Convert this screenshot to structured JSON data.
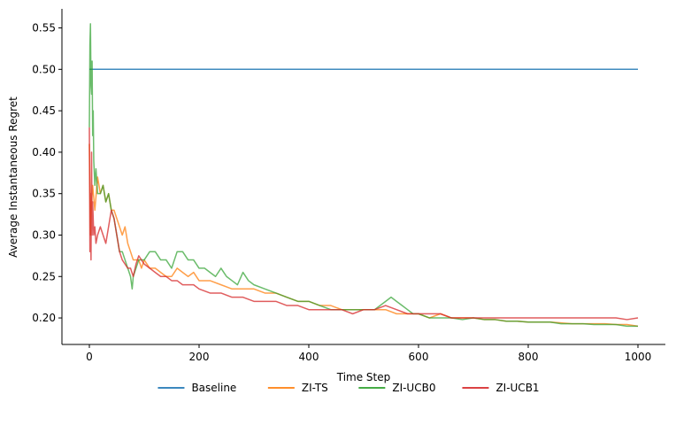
{
  "chart_data": {
    "type": "line",
    "xlabel": "Time Step",
    "ylabel": "Average Instantaneous Regret",
    "xlim": [
      -50,
      1050
    ],
    "ylim": [
      0.168,
      0.573
    ],
    "xticks": [
      0,
      200,
      400,
      600,
      800,
      1000
    ],
    "yticks": [
      0.2,
      0.25,
      0.3,
      0.35,
      0.4,
      0.45,
      0.5,
      0.55
    ],
    "ytick_format_decimals": 2,
    "legend_position": "bottom-center",
    "grid": false,
    "series": [
      {
        "name": "Baseline",
        "color": "#1f77b4",
        "opacity": 0.85,
        "points": [
          [
            0,
            0.5
          ],
          [
            1000,
            0.5
          ]
        ]
      },
      {
        "name": "ZI-TS",
        "color": "#ff7f0e",
        "opacity": 0.75,
        "points": [
          [
            0,
            0.41
          ],
          [
            2,
            0.3
          ],
          [
            4,
            0.34
          ],
          [
            6,
            0.36
          ],
          [
            10,
            0.33
          ],
          [
            15,
            0.37
          ],
          [
            20,
            0.35
          ],
          [
            25,
            0.36
          ],
          [
            30,
            0.34
          ],
          [
            35,
            0.35
          ],
          [
            40,
            0.33
          ],
          [
            45,
            0.33
          ],
          [
            50,
            0.32
          ],
          [
            55,
            0.31
          ],
          [
            60,
            0.3
          ],
          [
            65,
            0.31
          ],
          [
            70,
            0.29
          ],
          [
            75,
            0.28
          ],
          [
            80,
            0.27
          ],
          [
            85,
            0.27
          ],
          [
            90,
            0.27
          ],
          [
            95,
            0.26
          ],
          [
            100,
            0.27
          ],
          [
            110,
            0.26
          ],
          [
            120,
            0.26
          ],
          [
            130,
            0.255
          ],
          [
            140,
            0.25
          ],
          [
            150,
            0.25
          ],
          [
            160,
            0.26
          ],
          [
            170,
            0.255
          ],
          [
            180,
            0.25
          ],
          [
            190,
            0.255
          ],
          [
            200,
            0.245
          ],
          [
            220,
            0.245
          ],
          [
            240,
            0.24
          ],
          [
            260,
            0.235
          ],
          [
            280,
            0.235
          ],
          [
            300,
            0.235
          ],
          [
            320,
            0.23
          ],
          [
            340,
            0.23
          ],
          [
            360,
            0.225
          ],
          [
            380,
            0.22
          ],
          [
            400,
            0.22
          ],
          [
            420,
            0.215
          ],
          [
            440,
            0.215
          ],
          [
            460,
            0.21
          ],
          [
            480,
            0.21
          ],
          [
            500,
            0.21
          ],
          [
            520,
            0.21
          ],
          [
            540,
            0.21
          ],
          [
            560,
            0.205
          ],
          [
            580,
            0.205
          ],
          [
            600,
            0.205
          ],
          [
            620,
            0.2
          ],
          [
            640,
            0.205
          ],
          [
            660,
            0.2
          ],
          [
            680,
            0.2
          ],
          [
            700,
            0.2
          ],
          [
            720,
            0.198
          ],
          [
            740,
            0.198
          ],
          [
            760,
            0.196
          ],
          [
            780,
            0.196
          ],
          [
            800,
            0.195
          ],
          [
            820,
            0.195
          ],
          [
            840,
            0.195
          ],
          [
            860,
            0.194
          ],
          [
            880,
            0.193
          ],
          [
            900,
            0.193
          ],
          [
            920,
            0.193
          ],
          [
            940,
            0.193
          ],
          [
            960,
            0.192
          ],
          [
            980,
            0.192
          ],
          [
            1000,
            0.19
          ]
        ]
      },
      {
        "name": "ZI-UCB0",
        "color": "#2ca02c",
        "opacity": 0.7,
        "points": [
          [
            0,
            0.43
          ],
          [
            1,
            0.53
          ],
          [
            2,
            0.555
          ],
          [
            3,
            0.48
          ],
          [
            4,
            0.47
          ],
          [
            5,
            0.51
          ],
          [
            6,
            0.42
          ],
          [
            7,
            0.45
          ],
          [
            8,
            0.39
          ],
          [
            10,
            0.36
          ],
          [
            12,
            0.38
          ],
          [
            15,
            0.35
          ],
          [
            20,
            0.35
          ],
          [
            25,
            0.36
          ],
          [
            30,
            0.34
          ],
          [
            35,
            0.35
          ],
          [
            40,
            0.33
          ],
          [
            45,
            0.32
          ],
          [
            50,
            0.3
          ],
          [
            55,
            0.28
          ],
          [
            60,
            0.28
          ],
          [
            65,
            0.27
          ],
          [
            70,
            0.26
          ],
          [
            75,
            0.25
          ],
          [
            78,
            0.235
          ],
          [
            80,
            0.25
          ],
          [
            85,
            0.26
          ],
          [
            90,
            0.27
          ],
          [
            95,
            0.27
          ],
          [
            100,
            0.27
          ],
          [
            110,
            0.28
          ],
          [
            120,
            0.28
          ],
          [
            130,
            0.27
          ],
          [
            140,
            0.27
          ],
          [
            150,
            0.26
          ],
          [
            160,
            0.28
          ],
          [
            170,
            0.28
          ],
          [
            180,
            0.27
          ],
          [
            190,
            0.27
          ],
          [
            200,
            0.26
          ],
          [
            210,
            0.26
          ],
          [
            220,
            0.255
          ],
          [
            230,
            0.25
          ],
          [
            240,
            0.26
          ],
          [
            250,
            0.25
          ],
          [
            260,
            0.245
          ],
          [
            270,
            0.24
          ],
          [
            280,
            0.255
          ],
          [
            290,
            0.245
          ],
          [
            300,
            0.24
          ],
          [
            320,
            0.235
          ],
          [
            340,
            0.23
          ],
          [
            360,
            0.225
          ],
          [
            380,
            0.22
          ],
          [
            400,
            0.22
          ],
          [
            420,
            0.215
          ],
          [
            440,
            0.21
          ],
          [
            460,
            0.21
          ],
          [
            480,
            0.21
          ],
          [
            500,
            0.21
          ],
          [
            520,
            0.21
          ],
          [
            540,
            0.22
          ],
          [
            550,
            0.225
          ],
          [
            560,
            0.22
          ],
          [
            570,
            0.215
          ],
          [
            580,
            0.21
          ],
          [
            590,
            0.205
          ],
          [
            600,
            0.205
          ],
          [
            620,
            0.2
          ],
          [
            640,
            0.2
          ],
          [
            660,
            0.2
          ],
          [
            680,
            0.198
          ],
          [
            700,
            0.2
          ],
          [
            720,
            0.198
          ],
          [
            740,
            0.198
          ],
          [
            760,
            0.196
          ],
          [
            780,
            0.196
          ],
          [
            800,
            0.195
          ],
          [
            820,
            0.195
          ],
          [
            840,
            0.195
          ],
          [
            860,
            0.193
          ],
          [
            880,
            0.193
          ],
          [
            900,
            0.193
          ],
          [
            920,
            0.192
          ],
          [
            940,
            0.192
          ],
          [
            960,
            0.192
          ],
          [
            980,
            0.19
          ],
          [
            1000,
            0.19
          ]
        ]
      },
      {
        "name": "ZI-UCB1",
        "color": "#d62728",
        "opacity": 0.75,
        "points": [
          [
            0,
            0.43
          ],
          [
            1,
            0.28
          ],
          [
            2,
            0.35
          ],
          [
            3,
            0.27
          ],
          [
            4,
            0.4
          ],
          [
            5,
            0.3
          ],
          [
            6,
            0.34
          ],
          [
            8,
            0.3
          ],
          [
            10,
            0.31
          ],
          [
            12,
            0.29
          ],
          [
            15,
            0.3
          ],
          [
            20,
            0.31
          ],
          [
            25,
            0.3
          ],
          [
            30,
            0.29
          ],
          [
            35,
            0.31
          ],
          [
            40,
            0.33
          ],
          [
            45,
            0.32
          ],
          [
            50,
            0.3
          ],
          [
            55,
            0.28
          ],
          [
            60,
            0.27
          ],
          [
            65,
            0.265
          ],
          [
            70,
            0.26
          ],
          [
            75,
            0.26
          ],
          [
            80,
            0.25
          ],
          [
            85,
            0.265
          ],
          [
            90,
            0.275
          ],
          [
            95,
            0.27
          ],
          [
            100,
            0.265
          ],
          [
            110,
            0.26
          ],
          [
            120,
            0.255
          ],
          [
            130,
            0.25
          ],
          [
            140,
            0.25
          ],
          [
            150,
            0.245
          ],
          [
            160,
            0.245
          ],
          [
            170,
            0.24
          ],
          [
            180,
            0.24
          ],
          [
            190,
            0.24
          ],
          [
            200,
            0.235
          ],
          [
            220,
            0.23
          ],
          [
            240,
            0.23
          ],
          [
            260,
            0.225
          ],
          [
            280,
            0.225
          ],
          [
            300,
            0.22
          ],
          [
            320,
            0.22
          ],
          [
            340,
            0.22
          ],
          [
            360,
            0.215
          ],
          [
            380,
            0.215
          ],
          [
            400,
            0.21
          ],
          [
            420,
            0.21
          ],
          [
            440,
            0.21
          ],
          [
            460,
            0.21
          ],
          [
            480,
            0.205
          ],
          [
            500,
            0.21
          ],
          [
            520,
            0.21
          ],
          [
            540,
            0.215
          ],
          [
            560,
            0.21
          ],
          [
            580,
            0.205
          ],
          [
            600,
            0.205
          ],
          [
            620,
            0.205
          ],
          [
            640,
            0.205
          ],
          [
            660,
            0.2
          ],
          [
            680,
            0.2
          ],
          [
            700,
            0.2
          ],
          [
            720,
            0.2
          ],
          [
            740,
            0.2
          ],
          [
            760,
            0.2
          ],
          [
            780,
            0.2
          ],
          [
            800,
            0.2
          ],
          [
            820,
            0.2
          ],
          [
            840,
            0.2
          ],
          [
            860,
            0.2
          ],
          [
            880,
            0.2
          ],
          [
            900,
            0.2
          ],
          [
            920,
            0.2
          ],
          [
            940,
            0.2
          ],
          [
            960,
            0.2
          ],
          [
            980,
            0.198
          ],
          [
            1000,
            0.2
          ]
        ]
      }
    ]
  }
}
